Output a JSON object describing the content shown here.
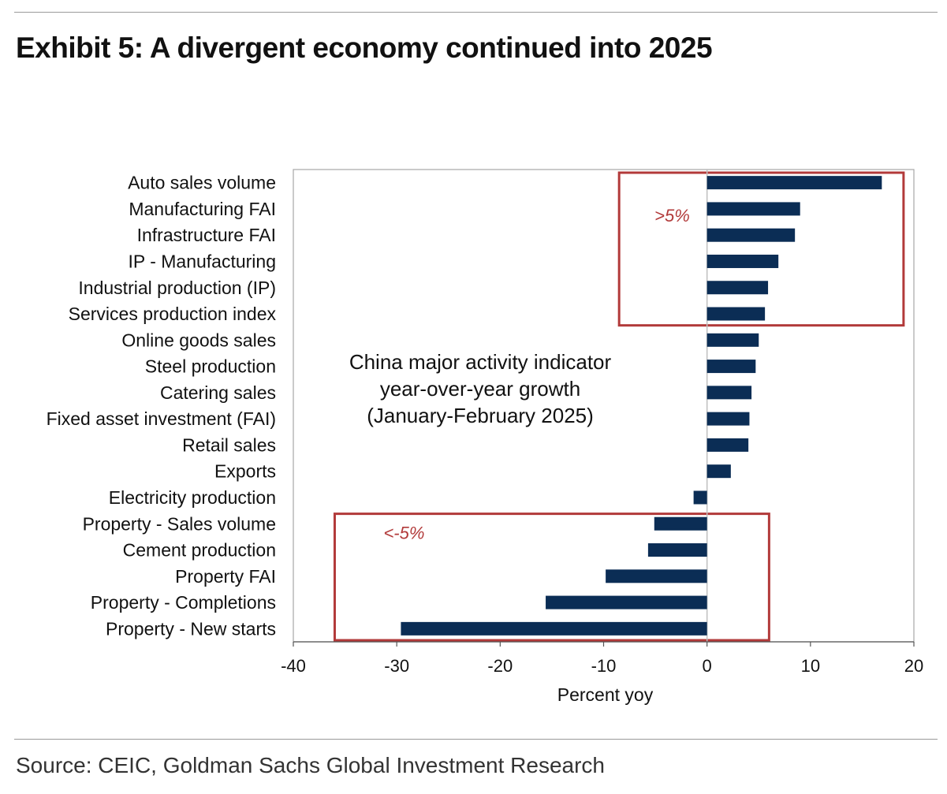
{
  "title": "Exhibit 5: A divergent economy continued into 2025",
  "source": "Source: CEIC, Goldman Sachs Global Investment Research",
  "colors": {
    "bar": "#0b2d55",
    "highlight_box": "#b23a3a",
    "frame": "#a6a6a6",
    "zero_line": "#bfbfbf"
  },
  "chart_data": {
    "type": "bar",
    "orientation": "horizontal",
    "categories": [
      "Auto sales volume",
      "Manufacturing FAI",
      "Infrastructure FAI",
      "IP - Manufacturing",
      "Industrial production (IP)",
      "Services production index",
      "Online goods sales",
      "Steel production",
      "Catering sales",
      "Fixed asset investment (FAI)",
      "Retail sales",
      "Exports",
      "Electricity production",
      "Property - Sales volume",
      "Cement production",
      "Property FAI",
      "Property - Completions",
      "Property - New starts"
    ],
    "values": [
      16.9,
      9.0,
      8.5,
      6.9,
      5.9,
      5.6,
      5.0,
      4.7,
      4.3,
      4.1,
      4.0,
      2.3,
      -1.3,
      -5.1,
      -5.7,
      -9.8,
      -15.6,
      -29.6
    ],
    "xlabel": "Percent yoy",
    "xlim": [
      -40,
      20
    ],
    "xticks": [
      -40,
      -30,
      -20,
      -10,
      0,
      10,
      20
    ],
    "annotation": "China major activity indicator year-over-year growth (January-February 2025)",
    "annotation_lines": [
      "China major activity indicator",
      "year-over-year growth",
      "(January-February 2025)"
    ],
    "highlight_boxes": [
      {
        "label": ">5%",
        "category_range": [
          0,
          5
        ],
        "x_range": [
          -8.5,
          19
        ]
      },
      {
        "label": "<-5%",
        "category_range": [
          13,
          17
        ],
        "x_range": [
          -36,
          6
        ]
      }
    ],
    "grid": false
  }
}
